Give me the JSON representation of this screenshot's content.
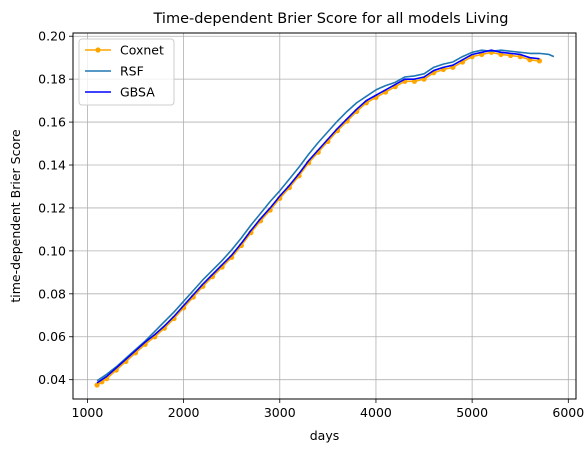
{
  "chart_data": {
    "type": "line",
    "title": "Time-dependent Brier Score for all models Living",
    "xlabel": "days",
    "ylabel": "time-dependent Brier Score",
    "xlim": [
      850,
      6080
    ],
    "ylim": [
      0.031,
      0.2015
    ],
    "xticks": [
      1000,
      2000,
      3000,
      4000,
      5000,
      6000
    ],
    "yticks": [
      0.04,
      0.06,
      0.08,
      0.1,
      0.12,
      0.14,
      0.16,
      0.18,
      0.2
    ],
    "xtick_labels": [
      "1000",
      "2000",
      "3000",
      "4000",
      "5000",
      "6000"
    ],
    "ytick_labels": [
      "0.04",
      "0.06",
      "0.08",
      "0.10",
      "0.12",
      "0.14",
      "0.16",
      "0.18",
      "0.20"
    ],
    "grid": true,
    "legend_position": "top-left",
    "series": [
      {
        "name": "Coxnet",
        "color": "#ffa500",
        "marker": "circle",
        "x": [
          1100,
          1150,
          1200,
          1300,
          1400,
          1500,
          1600,
          1700,
          1800,
          1900,
          2000,
          2100,
          2200,
          2300,
          2400,
          2500,
          2600,
          2700,
          2800,
          2900,
          3000,
          3100,
          3200,
          3300,
          3400,
          3500,
          3600,
          3700,
          3800,
          3900,
          4000,
          4100,
          4200,
          4300,
          4400,
          4500,
          4600,
          4700,
          4800,
          4900,
          5000,
          5100,
          5200,
          5300,
          5400,
          5500,
          5600,
          5700
        ],
        "y": [
          0.0375,
          0.039,
          0.0405,
          0.0445,
          0.0485,
          0.0525,
          0.0565,
          0.06,
          0.064,
          0.0685,
          0.0735,
          0.0785,
          0.0835,
          0.088,
          0.0925,
          0.097,
          0.1025,
          0.1085,
          0.114,
          0.119,
          0.1245,
          0.1295,
          0.135,
          0.141,
          0.146,
          0.151,
          0.156,
          0.1605,
          0.165,
          0.169,
          0.1715,
          0.174,
          0.1765,
          0.179,
          0.179,
          0.18,
          0.183,
          0.1845,
          0.1855,
          0.188,
          0.1905,
          0.1915,
          0.1925,
          0.1915,
          0.191,
          0.1905,
          0.189,
          0.1885
        ]
      },
      {
        "name": "RSF",
        "color": "#1f77b4",
        "marker": "none",
        "x": [
          1100,
          1150,
          1200,
          1300,
          1400,
          1500,
          1600,
          1700,
          1800,
          1900,
          2000,
          2100,
          2200,
          2300,
          2400,
          2500,
          2600,
          2700,
          2800,
          2900,
          3000,
          3100,
          3200,
          3300,
          3400,
          3500,
          3600,
          3700,
          3800,
          3900,
          4000,
          4100,
          4200,
          4300,
          4400,
          4500,
          4600,
          4700,
          4800,
          4900,
          5000,
          5100,
          5200,
          5300,
          5400,
          5500,
          5600,
          5700,
          5800,
          5850
        ],
        "y": [
          0.0395,
          0.041,
          0.0425,
          0.046,
          0.05,
          0.054,
          0.058,
          0.0625,
          0.067,
          0.0715,
          0.0765,
          0.0815,
          0.0865,
          0.091,
          0.0955,
          0.1005,
          0.106,
          0.112,
          0.1175,
          0.123,
          0.128,
          0.1335,
          0.139,
          0.145,
          0.1505,
          0.1555,
          0.1605,
          0.165,
          0.169,
          0.172,
          0.175,
          0.177,
          0.1785,
          0.181,
          0.1815,
          0.1825,
          0.1855,
          0.187,
          0.188,
          0.1905,
          0.1925,
          0.1935,
          0.193,
          0.1935,
          0.193,
          0.1925,
          0.192,
          0.192,
          0.1915,
          0.1905
        ]
      },
      {
        "name": "GBSA",
        "color": "#0000ff",
        "marker": "none",
        "x": [
          1100,
          1150,
          1200,
          1300,
          1400,
          1500,
          1600,
          1700,
          1800,
          1900,
          2000,
          2100,
          2200,
          2300,
          2400,
          2500,
          2600,
          2700,
          2800,
          2900,
          3000,
          3100,
          3200,
          3300,
          3400,
          3500,
          3600,
          3700,
          3800,
          3900,
          4000,
          4100,
          4200,
          4300,
          4400,
          4500,
          4600,
          4700,
          4800,
          4900,
          5000,
          5100,
          5200,
          5300,
          5400,
          5500,
          5600,
          5700
        ],
        "y": [
          0.0385,
          0.04,
          0.0415,
          0.0455,
          0.0495,
          0.0535,
          0.0575,
          0.061,
          0.065,
          0.0695,
          0.0745,
          0.0795,
          0.0845,
          0.089,
          0.0935,
          0.098,
          0.1035,
          0.1095,
          0.115,
          0.12,
          0.1255,
          0.1305,
          0.136,
          0.142,
          0.147,
          0.152,
          0.157,
          0.1615,
          0.166,
          0.17,
          0.1725,
          0.175,
          0.1775,
          0.18,
          0.18,
          0.181,
          0.184,
          0.1855,
          0.1865,
          0.189,
          0.1915,
          0.1925,
          0.1935,
          0.1925,
          0.192,
          0.1915,
          0.19,
          0.1895
        ]
      }
    ]
  }
}
